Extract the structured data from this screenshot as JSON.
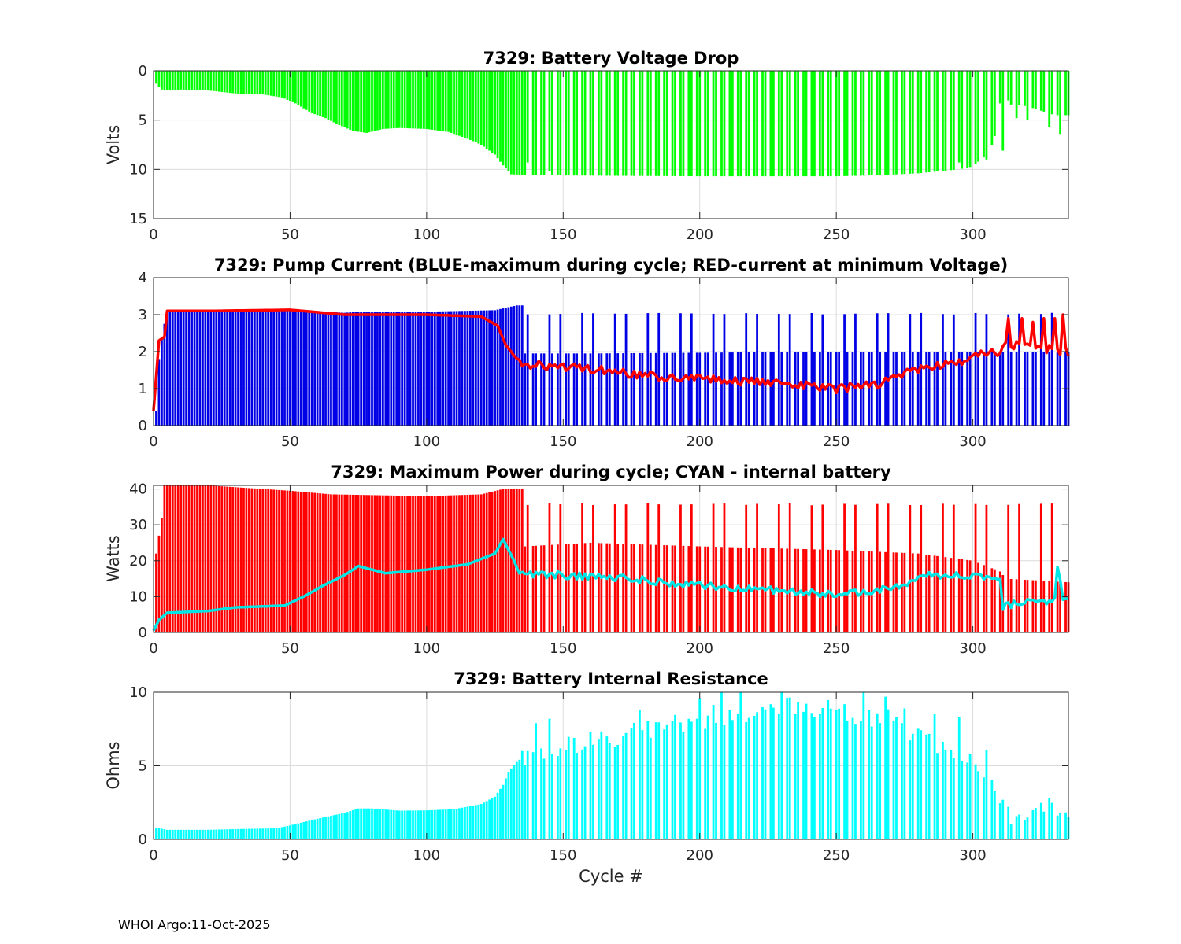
{
  "footer": "WHOI Argo:11-Oct-2025",
  "chart_data": [
    {
      "id": "voltage",
      "type": "bar",
      "title": "7329: Battery Voltage Drop",
      "xlabel": "",
      "ylabel": "Volts",
      "xlim": [
        0,
        335
      ],
      "ylim": [
        0,
        15
      ],
      "y_reversed": true,
      "xticks": [
        0,
        50,
        100,
        150,
        200,
        250,
        300
      ],
      "yticks": [
        0,
        5,
        10,
        15
      ],
      "grid": true,
      "colors": {
        "bars": "#00ff00"
      },
      "series": [
        {
          "name": "Voltage drop",
          "style": "bars",
          "keypoints": [
            [
              1,
              1.3
            ],
            [
              3,
              1.9
            ],
            [
              6,
              2
            ],
            [
              10,
              1.9
            ],
            [
              20,
              2
            ],
            [
              30,
              2.3
            ],
            [
              40,
              2.4
            ],
            [
              47,
              2.7
            ],
            [
              52,
              3.3
            ],
            [
              58,
              4.3
            ],
            [
              63,
              4.8
            ],
            [
              68,
              5.5
            ],
            [
              73,
              6.1
            ],
            [
              78,
              6.3
            ],
            [
              84,
              5.9
            ],
            [
              90,
              5.8
            ],
            [
              100,
              5.9
            ],
            [
              108,
              6.2
            ],
            [
              115,
              6.9
            ],
            [
              120,
              7.5
            ],
            [
              125,
              8.5
            ],
            [
              128,
              9.6
            ],
            [
              131,
              10.5
            ],
            [
              140,
              10.6
            ],
            [
              200,
              10.7
            ],
            [
              250,
              10.7
            ],
            [
              265,
              10.6
            ],
            [
              280,
              10.4
            ],
            [
              295,
              10.0
            ],
            [
              300,
              9.7
            ],
            [
              305,
              8.5
            ],
            [
              309,
              6.0
            ],
            [
              310,
              3.3
            ],
            [
              320,
              3.6
            ],
            [
              330,
              4.5
            ],
            [
              335,
              4.5
            ]
          ],
          "gap_from": 135,
          "gap_every": 3,
          "spikes": [
            {
              "x": 137,
              "y": 9.3
            },
            {
              "x": 141,
              "y": 9.7
            },
            {
              "x": 145,
              "y": 10.2
            },
            {
              "x": 295,
              "y": 9.3
            },
            {
              "x": 300,
              "y": 8.6
            },
            {
              "x": 305,
              "y": 9.0
            },
            {
              "x": 307,
              "y": 7.5
            },
            {
              "x": 309,
              "y": 6.1
            },
            {
              "x": 311,
              "y": 8.1
            },
            {
              "x": 313,
              "y": 3.0
            },
            {
              "x": 316,
              "y": 4.8
            },
            {
              "x": 320,
              "y": 5.0
            },
            {
              "x": 324,
              "y": 5.3
            },
            {
              "x": 328,
              "y": 5.7
            },
            {
              "x": 332,
              "y": 6.4
            }
          ]
        }
      ]
    },
    {
      "id": "current",
      "type": "bar",
      "title": "7329: Pump Current (BLUE-maximum during cycle; RED-current at minimum Voltage)",
      "xlabel": "",
      "ylabel": "",
      "xlim": [
        0,
        335
      ],
      "ylim": [
        0,
        4
      ],
      "y_reversed": false,
      "xticks": [
        0,
        50,
        100,
        150,
        200,
        250,
        300
      ],
      "yticks": [
        0,
        1,
        2,
        3,
        4
      ],
      "grid": true,
      "colors": {
        "bars": "#0000e6",
        "line": "#ff0000"
      },
      "series": [
        {
          "name": "BLUE-maximum during cycle",
          "style": "bars",
          "keypoints": [
            [
              1,
              0.4
            ],
            [
              2,
              1.8
            ],
            [
              3,
              2.4
            ],
            [
              5,
              3.1
            ],
            [
              20,
              3.1
            ],
            [
              50,
              3.13
            ],
            [
              70,
              3.05
            ],
            [
              75,
              3.08
            ],
            [
              100,
              3.08
            ],
            [
              125,
              3.12
            ],
            [
              133,
              3.25
            ],
            [
              135,
              3.25
            ],
            [
              136,
              1.95
            ],
            [
              160,
              1.95
            ],
            [
              200,
              1.97
            ],
            [
              250,
              2.0
            ],
            [
              300,
              2.0
            ],
            [
              335,
              2.0
            ]
          ],
          "gap_from": 135,
          "gap_every": 3,
          "spike_every": 4,
          "spike_from": 137,
          "spike_to": 333,
          "spike_value": 3.05
        },
        {
          "name": "RED-current at minimum Voltage",
          "style": "line",
          "keypoints": [
            [
              0,
              0.4
            ],
            [
              2,
              2.3
            ],
            [
              4,
              2.4
            ],
            [
              5,
              3.1
            ],
            [
              20,
              3.1
            ],
            [
              50,
              3.13
            ],
            [
              70,
              3.0
            ],
            [
              100,
              3.0
            ],
            [
              120,
              2.95
            ],
            [
              126,
              2.7
            ],
            [
              130,
              2.0
            ],
            [
              135,
              1.65
            ],
            [
              150,
              1.6
            ],
            [
              175,
              1.4
            ],
            [
              200,
              1.25
            ],
            [
              225,
              1.15
            ],
            [
              250,
              1.0
            ],
            [
              265,
              1.1
            ],
            [
              275,
              1.4
            ],
            [
              285,
              1.6
            ],
            [
              295,
              1.7
            ],
            [
              300,
              1.8
            ],
            [
              304,
              2.0
            ],
            [
              310,
              2.0
            ],
            [
              313,
              2.2
            ],
            [
              335,
              2.0
            ]
          ],
          "noise_from": 130,
          "noise_amp": 0.12,
          "late_spikes": [
            {
              "x": 313,
              "y": 2.9
            },
            {
              "x": 318,
              "y": 2.9
            },
            {
              "x": 322,
              "y": 2.8
            },
            {
              "x": 326,
              "y": 2.9
            },
            {
              "x": 330,
              "y": 2.9
            },
            {
              "x": 333,
              "y": 3.0
            }
          ]
        }
      ]
    },
    {
      "id": "power",
      "type": "bar",
      "title": "7329: Maximum Power during cycle; CYAN - internal battery",
      "xlabel": "",
      "ylabel": "Watts",
      "xlim": [
        0,
        335
      ],
      "ylim": [
        0,
        41
      ],
      "y_reversed": false,
      "xticks": [
        0,
        50,
        100,
        150,
        200,
        250,
        300
      ],
      "yticks": [
        0,
        10,
        20,
        30,
        40
      ],
      "grid": true,
      "colors": {
        "bars": "#ff0000",
        "line": "#00e6e6"
      },
      "series": [
        {
          "name": "Maximum Power during cycle",
          "style": "bars",
          "keypoints": [
            [
              1,
              22
            ],
            [
              3,
              32
            ],
            [
              4,
              41
            ],
            [
              20,
              41
            ],
            [
              50,
              39.5
            ],
            [
              65,
              38.5
            ],
            [
              100,
              38
            ],
            [
              120,
              38.5
            ],
            [
              128,
              40
            ],
            [
              135,
              40
            ],
            [
              136,
              24
            ],
            [
              160,
              25
            ],
            [
              200,
              24
            ],
            [
              250,
              23
            ],
            [
              280,
              22
            ],
            [
              300,
              20
            ],
            [
              310,
              17
            ],
            [
              312,
              15
            ],
            [
              335,
              14
            ]
          ],
          "gap_from": 135,
          "gap_every": 3,
          "spike_every": 4,
          "spike_from": 137,
          "spike_to": 333,
          "spike_value": 36
        },
        {
          "name": "CYAN - internal battery",
          "style": "line",
          "keypoints": [
            [
              0,
              0.5
            ],
            [
              2,
              3.5
            ],
            [
              5,
              5.5
            ],
            [
              20,
              6
            ],
            [
              30,
              7
            ],
            [
              48,
              7.5
            ],
            [
              55,
              10
            ],
            [
              62,
              13
            ],
            [
              70,
              16
            ],
            [
              75,
              18.5
            ],
            [
              80,
              17.5
            ],
            [
              85,
              16.5
            ],
            [
              100,
              17.5
            ],
            [
              115,
              19
            ],
            [
              125,
              22
            ],
            [
              128,
              26
            ],
            [
              132,
              20
            ],
            [
              135,
              16
            ],
            [
              150,
              16
            ],
            [
              175,
              15
            ],
            [
              200,
              13
            ],
            [
              225,
              12
            ],
            [
              250,
              10.5
            ],
            [
              265,
              11.5
            ],
            [
              275,
              13.5
            ],
            [
              285,
              16
            ],
            [
              300,
              16
            ],
            [
              310,
              14
            ],
            [
              311,
              7
            ],
            [
              315,
              8
            ],
            [
              330,
              9
            ],
            [
              331,
              19
            ],
            [
              333,
              9
            ],
            [
              335,
              9
            ]
          ],
          "noise_from": 133,
          "noise_amp": 1.0
        }
      ]
    },
    {
      "id": "resistance",
      "type": "bar",
      "title": "7329: Battery Internal Resistance",
      "xlabel": "Cycle #",
      "ylabel": "Ohms",
      "xlim": [
        0,
        335
      ],
      "ylim": [
        0,
        10
      ],
      "y_reversed": false,
      "xticks": [
        0,
        50,
        100,
        150,
        200,
        250,
        300
      ],
      "yticks": [
        0,
        5,
        10
      ],
      "grid": true,
      "colors": {
        "bars": "#00ffff"
      },
      "series": [
        {
          "name": "Internal resistance",
          "style": "bars",
          "keypoints": [
            [
              1,
              0.8
            ],
            [
              5,
              0.65
            ],
            [
              20,
              0.65
            ],
            [
              30,
              0.7
            ],
            [
              45,
              0.75
            ],
            [
              50,
              0.95
            ],
            [
              60,
              1.4
            ],
            [
              70,
              1.8
            ],
            [
              75,
              2.1
            ],
            [
              80,
              2.1
            ],
            [
              90,
              1.95
            ],
            [
              100,
              1.97
            ],
            [
              110,
              2.05
            ],
            [
              120,
              2.4
            ],
            [
              125,
              2.9
            ],
            [
              128,
              3.7
            ],
            [
              130,
              4.6
            ],
            [
              135,
              5.7
            ],
            [
              150,
              6.2
            ],
            [
              175,
              7.2
            ],
            [
              200,
              8.2
            ],
            [
              220,
              8.8
            ],
            [
              240,
              9.1
            ],
            [
              250,
              9.0
            ],
            [
              270,
              8.0
            ],
            [
              285,
              6.8
            ],
            [
              300,
              5.2
            ],
            [
              305,
              4.2
            ],
            [
              309,
              3.0
            ],
            [
              311,
              2.6
            ],
            [
              312,
              1.6
            ],
            [
              320,
              1.8
            ],
            [
              335,
              2.3
            ]
          ],
          "gap_from": 135,
          "gap_every": 3,
          "noise_from": 134,
          "noise_amp": 0.8,
          "spikes": [
            {
              "x": 140,
              "y": 7.9
            },
            {
              "x": 145,
              "y": 8.2
            },
            {
              "x": 168,
              "y": 8.1
            },
            {
              "x": 178,
              "y": 8.8
            },
            {
              "x": 200,
              "y": 9.6
            },
            {
              "x": 208,
              "y": 10
            },
            {
              "x": 215,
              "y": 10
            },
            {
              "x": 230,
              "y": 10
            },
            {
              "x": 240,
              "y": 10
            },
            {
              "x": 246,
              "y": 10
            },
            {
              "x": 252,
              "y": 10
            },
            {
              "x": 260,
              "y": 10
            },
            {
              "x": 268,
              "y": 9.7
            },
            {
              "x": 275,
              "y": 8.9
            },
            {
              "x": 286,
              "y": 8.5
            },
            {
              "x": 295,
              "y": 8.3
            },
            {
              "x": 300,
              "y": 7.6
            },
            {
              "x": 305,
              "y": 6.1
            },
            {
              "x": 309,
              "y": 7.8
            }
          ]
        }
      ]
    }
  ]
}
